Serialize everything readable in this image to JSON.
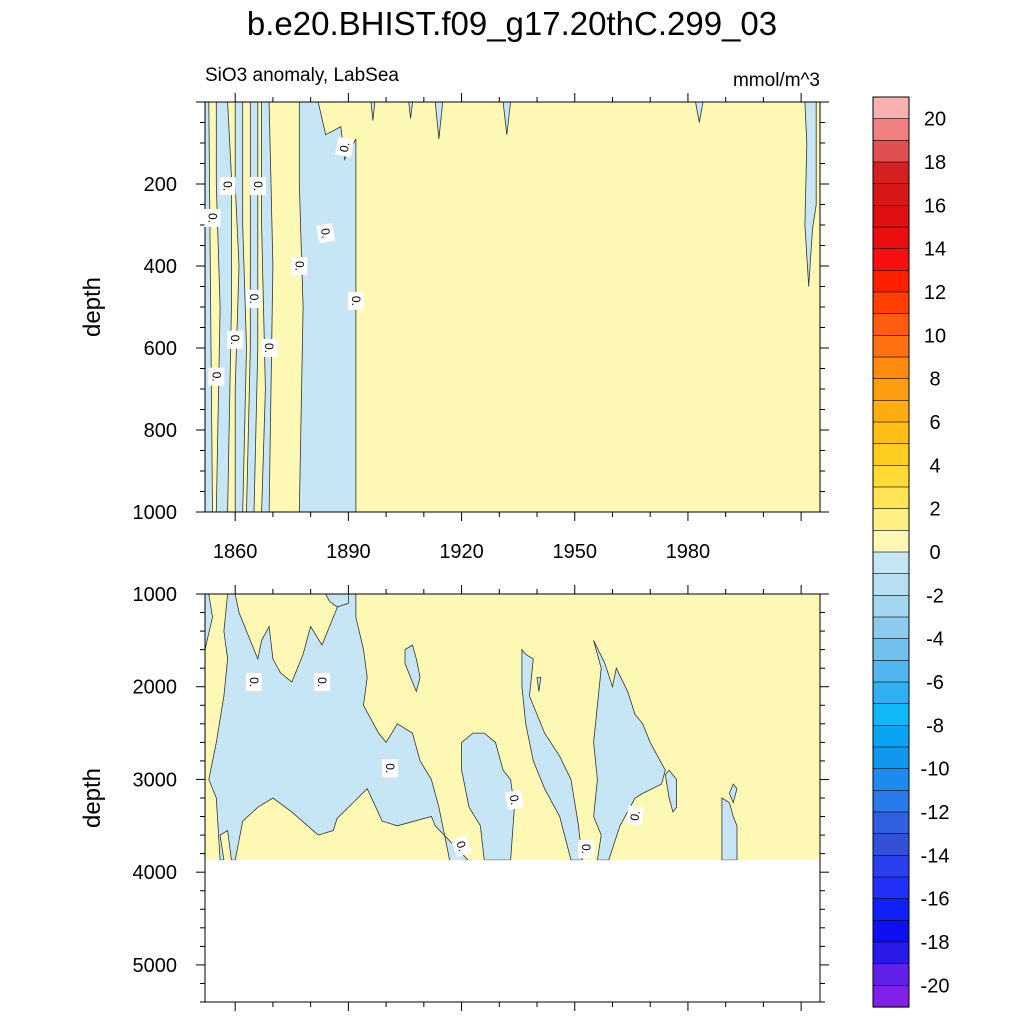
{
  "chart_data": {
    "type": "contour",
    "title": "b.e20.BHIST.f09_g17.20thC.299_03",
    "subtitle_left": "SiO3 anomaly, LabSea",
    "subtitle_right": "mmol/m^3",
    "time_range": [
      1852,
      2015
    ],
    "colors": {
      "positive_fill": "#fdf8b4",
      "negative_fill": "#c6e5f5",
      "contour_line": "#333333"
    },
    "panels": [
      {
        "name": "upper",
        "ylabel": "depth",
        "ylim": [
          0,
          1000
        ],
        "data_top": 0,
        "data_bottom": 1000,
        "yticks": [
          200,
          400,
          600,
          800,
          1000
        ],
        "ytick_labels": [
          "200",
          "400",
          "600",
          "800",
          "1000"
        ],
        "xticks": [
          1860,
          1890,
          1920,
          1950,
          1980
        ],
        "xtick_labels": [
          "1860",
          "1890",
          "1920",
          "1950",
          "1980"
        ],
        "negative_regions": [
          [
            [
              1853,
              0
            ],
            [
              1854,
              1000
            ],
            [
              1852,
              1000
            ],
            [
              1852,
              0
            ]
          ],
          [
            [
              1855,
              0
            ],
            [
              1858,
              0
            ],
            [
              1859,
              180
            ],
            [
              1859,
              500
            ],
            [
              1858,
              1000
            ],
            [
              1855,
              1000
            ],
            [
              1856,
              500
            ],
            [
              1855,
              200
            ]
          ],
          [
            [
              1860,
              0
            ],
            [
              1862,
              0
            ],
            [
              1862,
              300
            ],
            [
              1863,
              600
            ],
            [
              1862,
              1000
            ],
            [
              1860,
              1000
            ],
            [
              1860,
              700
            ],
            [
              1861,
              400
            ],
            [
              1860,
              200
            ]
          ],
          [
            [
              1864,
              0
            ],
            [
              1866,
              0
            ],
            [
              1866,
              300
            ],
            [
              1866,
              600
            ],
            [
              1865,
              1000
            ],
            [
              1863,
              1000
            ],
            [
              1864,
              600
            ],
            [
              1864,
              300
            ]
          ],
          [
            [
              1867,
              0
            ],
            [
              1869,
              0
            ],
            [
              1870,
              400
            ],
            [
              1869,
              1000
            ],
            [
              1867,
              1000
            ],
            [
              1868,
              700
            ],
            [
              1867,
              300
            ]
          ],
          [
            [
              1877,
              0
            ],
            [
              1882,
              0
            ],
            [
              1884,
              80
            ],
            [
              1888,
              60
            ],
            [
              1889,
              140
            ],
            [
              1892,
              90
            ],
            [
              1892,
              1000
            ],
            [
              1877,
              1000
            ],
            [
              1878,
              500
            ],
            [
              1877,
              200
            ]
          ],
          [
            [
              1896,
              0
            ],
            [
              1897,
              0
            ],
            [
              1896.5,
              45
            ]
          ],
          [
            [
              1906,
              0
            ],
            [
              1907,
              0
            ],
            [
              1906.5,
              40
            ]
          ],
          [
            [
              1913,
              0
            ],
            [
              1915,
              0
            ],
            [
              1914,
              90
            ]
          ],
          [
            [
              1931,
              0
            ],
            [
              1933,
              0
            ],
            [
              1932,
              80
            ]
          ],
          [
            [
              1982,
              0
            ],
            [
              1984,
              0
            ],
            [
              1983,
              50
            ]
          ],
          [
            [
              2011,
              0
            ],
            [
              2014,
              0
            ],
            [
              2014,
              250
            ],
            [
              2013,
              310
            ],
            [
              2012,
              450
            ],
            [
              2011,
              300
            ],
            [
              2011.5,
              100
            ]
          ]
        ],
        "contour_labels": [
          {
            "x": 1889,
            "y": 110,
            "text": "0.",
            "angle": -80
          },
          {
            "x": 1858,
            "y": 205,
            "text": "0.",
            "angle": 90
          },
          {
            "x": 1866,
            "y": 205,
            "text": "0.",
            "angle": 90
          },
          {
            "x": 1854,
            "y": 283,
            "text": "0.",
            "angle": 90
          },
          {
            "x": 1884,
            "y": 320,
            "text": "0.",
            "angle": 80
          },
          {
            "x": 1877,
            "y": 400,
            "text": "0.",
            "angle": 90
          },
          {
            "x": 1865,
            "y": 480,
            "text": "0.",
            "angle": 90
          },
          {
            "x": 1892,
            "y": 485,
            "text": "0.",
            "angle": 90
          },
          {
            "x": 1860,
            "y": 580,
            "text": "0.",
            "angle": 90
          },
          {
            "x": 1869,
            "y": 600,
            "text": "0.",
            "angle": 90
          },
          {
            "x": 1855,
            "y": 670,
            "text": "0.",
            "angle": 90
          }
        ]
      },
      {
        "name": "lower",
        "ylabel": "depth",
        "ylim": [
          1000,
          5400
        ],
        "data_top": 1000,
        "data_bottom": 3870,
        "yticks": [
          1000,
          2000,
          3000,
          4000,
          5000
        ],
        "ytick_labels": [
          "1000",
          "2000",
          "3000",
          "4000",
          "5000"
        ],
        "xticks": [
          1860,
          1890,
          1920,
          1950,
          1980
        ],
        "xtick_labels": [],
        "negative_regions": [
          [
            [
              1853,
              1000
            ],
            [
              1854,
              1250
            ],
            [
              1852,
              1600
            ],
            [
              1852,
              1000
            ]
          ],
          [
            [
              1858,
              1000
            ],
            [
              1860,
              1000
            ],
            [
              1861,
              1200
            ],
            [
              1864,
              1500
            ],
            [
              1866,
              1700
            ],
            [
              1867,
              1500
            ],
            [
              1869,
              1350
            ],
            [
              1870,
              1700
            ],
            [
              1872,
              1850
            ],
            [
              1875,
              1950
            ],
            [
              1878,
              1650
            ],
            [
              1880,
              1350
            ],
            [
              1883,
              1550
            ],
            [
              1887,
              1150
            ],
            [
              1889,
              1000
            ],
            [
              1892,
              1000
            ],
            [
              1892,
              1250
            ],
            [
              1894,
              1600
            ],
            [
              1895,
              1900
            ],
            [
              1894,
              2200
            ],
            [
              1898,
              2500
            ],
            [
              1900,
              2600
            ],
            [
              1903,
              2400
            ],
            [
              1907,
              2500
            ],
            [
              1909,
              2800
            ],
            [
              1912,
              3000
            ],
            [
              1914,
              3300
            ],
            [
              1917,
              3900
            ],
            [
              1921,
              3870
            ],
            [
              1922,
              3880
            ],
            [
              1913,
              3500
            ],
            [
              1912,
              3400
            ],
            [
              1903,
              3500
            ],
            [
              1899,
              3450
            ],
            [
              1895,
              3100
            ],
            [
              1891,
              3260
            ],
            [
              1887,
              3420
            ],
            [
              1886,
              3550
            ],
            [
              1882,
              3600
            ],
            [
              1875,
              3350
            ],
            [
              1870,
              3200
            ],
            [
              1866,
              3300
            ],
            [
              1862,
              3450
            ],
            [
              1860,
              3870
            ],
            [
              1859,
              3870
            ],
            [
              1858,
              3550
            ],
            [
              1856,
              3600
            ],
            [
              1857,
              3870
            ],
            [
              1856,
              3870
            ],
            [
              1855,
              3200
            ],
            [
              1853,
              3000
            ],
            [
              1855,
              2600
            ],
            [
              1857,
              2100
            ],
            [
              1858,
              1700
            ],
            [
              1857,
              1400
            ]
          ],
          [
            [
              1884,
              1000
            ],
            [
              1890,
              1000
            ],
            [
              1890,
              1100
            ],
            [
              1887,
              1140
            ],
            [
              1885,
              1080
            ]
          ],
          [
            [
              1905,
              1600
            ],
            [
              1907,
              1550
            ],
            [
              1908,
              1700
            ],
            [
              1909,
              1900
            ],
            [
              1908,
              2050
            ],
            [
              1907,
              1950
            ],
            [
              1905,
              1750
            ]
          ],
          [
            [
              1920,
              2600
            ],
            [
              1923,
              2500
            ],
            [
              1926,
              2500
            ],
            [
              1929,
              2600
            ],
            [
              1931,
              2900
            ],
            [
              1933,
              3000
            ],
            [
              1934,
              3300
            ],
            [
              1933,
              3870
            ],
            [
              1926,
              3870
            ],
            [
              1925,
              3500
            ],
            [
              1922,
              3300
            ],
            [
              1920,
              2900
            ]
          ],
          [
            [
              1936,
              1600
            ],
            [
              1937,
              1650
            ],
            [
              1939,
              1700
            ],
            [
              1938,
              2100
            ],
            [
              1942,
              2500
            ],
            [
              1946,
              2750
            ],
            [
              1949,
              3000
            ],
            [
              1951,
              3500
            ],
            [
              1952,
              3870
            ],
            [
              1949,
              3870
            ],
            [
              1946,
              3400
            ],
            [
              1942,
              3100
            ],
            [
              1939,
              2800
            ],
            [
              1937,
              2400
            ],
            [
              1936,
              2000
            ]
          ],
          [
            [
              1955,
              1500
            ],
            [
              1958,
              1750
            ],
            [
              1960,
              2000
            ],
            [
              1961,
              1800
            ],
            [
              1964,
              2050
            ],
            [
              1966,
              2300
            ],
            [
              1968,
              2400
            ],
            [
              1970,
              2600
            ],
            [
              1974,
              2900
            ],
            [
              1973,
              3050
            ],
            [
              1968,
              3150
            ],
            [
              1966,
              3200
            ],
            [
              1962,
              3500
            ],
            [
              1959,
              3870
            ],
            [
              1956,
              3870
            ],
            [
              1957,
              3600
            ],
            [
              1955,
              3400
            ],
            [
              1956,
              3000
            ],
            [
              1955,
              2600
            ],
            [
              1956,
              2200
            ],
            [
              1957,
              1800
            ]
          ],
          [
            [
              1974,
              2950
            ],
            [
              1975,
              2900
            ],
            [
              1977,
              3000
            ],
            [
              1977,
              3300
            ],
            [
              1976,
              3350
            ],
            [
              1975,
              3200
            ]
          ],
          [
            [
              1989,
              3200
            ],
            [
              1991,
              3250
            ],
            [
              1992,
              3400
            ],
            [
              1993,
              3500
            ],
            [
              1993,
              3870
            ],
            [
              1989,
              3870
            ],
            [
              1989,
              3600
            ]
          ],
          [
            [
              1992,
              3050
            ],
            [
              1993,
              3100
            ],
            [
              1992,
              3250
            ],
            [
              1991,
              3150
            ]
          ],
          [
            [
              1940,
              1900
            ],
            [
              1941,
              1900
            ],
            [
              1940.5,
              2050
            ]
          ]
        ],
        "contour_labels": [
          {
            "x": 1865,
            "y": 1950,
            "text": "0.",
            "angle": 90
          },
          {
            "x": 1883,
            "y": 1950,
            "text": "0.",
            "angle": 90
          },
          {
            "x": 1901,
            "y": 2880,
            "text": "0.",
            "angle": 90
          },
          {
            "x": 1934,
            "y": 3220,
            "text": "0.",
            "angle": 80
          },
          {
            "x": 1966,
            "y": 3390,
            "text": "0.",
            "angle": -80
          },
          {
            "x": 1920,
            "y": 3720,
            "text": "0.",
            "angle": 70
          },
          {
            "x": 1953,
            "y": 3750,
            "text": "0.",
            "angle": 90
          }
        ]
      }
    ],
    "colorbar": {
      "label_levels": [
        20,
        18,
        16,
        14,
        12,
        10,
        8,
        6,
        4,
        2,
        0,
        -2,
        -4,
        -6,
        -8,
        -10,
        -12,
        -14,
        -16,
        -18,
        -20
      ],
      "labels": [
        "20",
        "18",
        "16",
        "14",
        "12",
        "10",
        "8",
        "6",
        "4",
        "2",
        "0",
        "-2",
        "-4",
        "-6",
        "-8",
        "-10",
        "-12",
        "-14",
        "-16",
        "-18",
        "-20"
      ],
      "colors": [
        "#f8b0b0",
        "#f08080",
        "#e05050",
        "#d42020",
        "#d81818",
        "#e01010",
        "#ec0d0d",
        "#f81010",
        "#ff2000",
        "#ff4000",
        "#ff5c10",
        "#ff7010",
        "#ff8a10",
        "#ff9d10",
        "#ffad10",
        "#ffbe15",
        "#ffcd20",
        "#ffdb35",
        "#ffe555",
        "#ffee80",
        "#fdf8b4",
        "#c6e5f5",
        "#b8def2",
        "#a5d6f0",
        "#8ccaee",
        "#72c0ee",
        "#52b6ee",
        "#2fb0f2",
        "#10b8f8",
        "#0aa5f2",
        "#1098ee",
        "#1c8aee",
        "#2a7aea",
        "#3060e0",
        "#3450d8",
        "#2a40ee",
        "#2030f8",
        "#1020f8",
        "#0c10f0",
        "#2a1aea",
        "#6020e8",
        "#8020e8"
      ]
    }
  }
}
